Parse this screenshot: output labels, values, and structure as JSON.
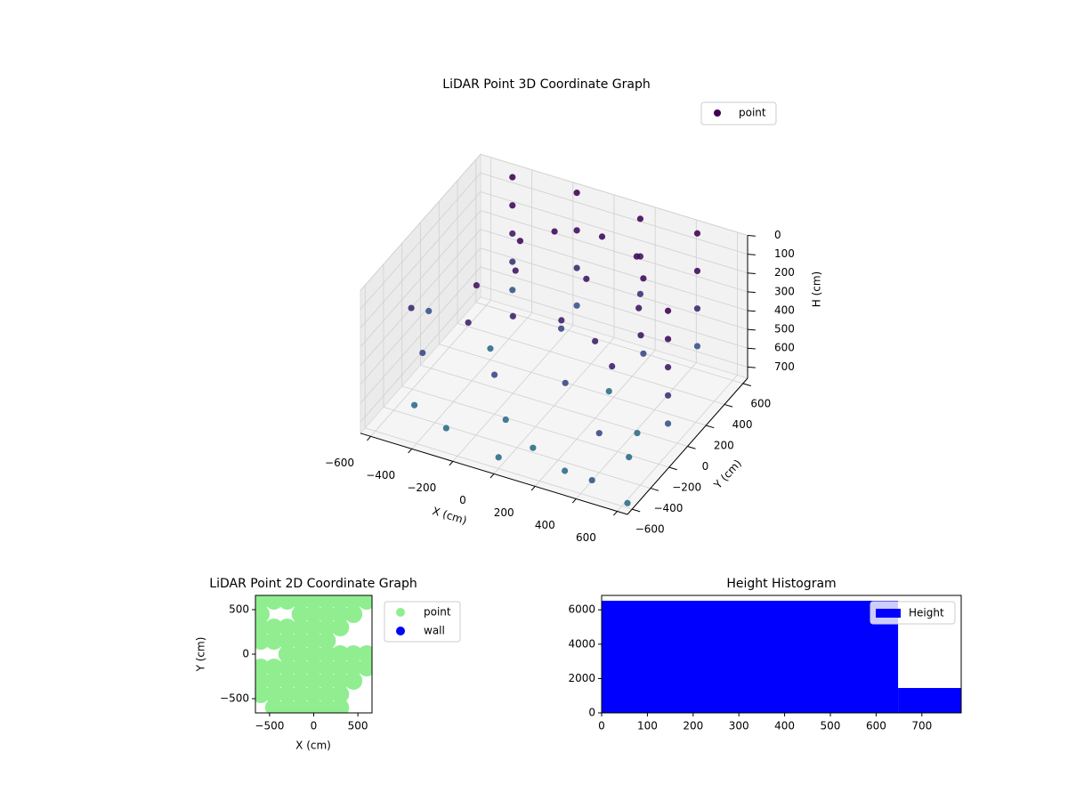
{
  "chart_data": [
    {
      "type": "scatter3d",
      "title": "LiDAR Point 3D Coordinate Graph",
      "xlabel": "X (cm)",
      "ylabel": "Y (cm)",
      "zlabel": "H (cm)",
      "xlim": [
        -650,
        650
      ],
      "ylim": [
        -650,
        650
      ],
      "zlim": [
        0,
        760
      ],
      "z_inverted": true,
      "cmap": "viridis",
      "xticks": [
        {
          "value": -600,
          "label": "−600"
        },
        {
          "value": -400,
          "label": "−400"
        },
        {
          "value": -200,
          "label": "−200"
        },
        0,
        200,
        400,
        600
      ],
      "yticks": [
        {
          "value": -600,
          "label": "−600"
        },
        {
          "value": -400,
          "label": "−400"
        },
        {
          "value": -200,
          "label": "−200"
        },
        0,
        200,
        400,
        600
      ],
      "zticks": [
        0,
        100,
        200,
        300,
        400,
        500,
        600,
        700
      ],
      "series_name": "point",
      "legend_color": "#440154",
      "legend": "upper right",
      "x": [
        -450,
        -450,
        -450,
        -450,
        -450,
        -150,
        -150,
        -150,
        -150,
        150,
        150,
        150,
        450,
        450,
        450,
        450,
        600,
        600,
        600,
        600,
        600,
        -300,
        -200,
        0,
        200,
        300,
        -400,
        -300,
        0,
        300,
        400,
        -350,
        -200,
        0,
        200,
        350,
        -500,
        -300,
        -100,
        100,
        300,
        500,
        -400,
        200,
        450,
        0,
        -550,
        -200,
        100,
        400,
        300,
        -100,
        -650,
        -700,
        650,
        500
      ],
      "y": [
        550,
        550,
        550,
        550,
        550,
        580,
        580,
        580,
        580,
        600,
        600,
        600,
        550,
        550,
        550,
        550,
        -100,
        -100,
        -100,
        -100,
        -100,
        300,
        450,
        520,
        450,
        300,
        50,
        250,
        350,
        250,
        50,
        -150,
        0,
        80,
        0,
        -150,
        -400,
        -500,
        -300,
        -450,
        -550,
        -300,
        200,
        150,
        -100,
        -600,
        -200,
        -200,
        -100,
        -400,
        300,
        300,
        -100,
        200,
        -650,
        -700
      ],
      "h": [
        0,
        150,
        300,
        450,
        600,
        0,
        200,
        400,
        600,
        50,
        250,
        450,
        0,
        200,
        400,
        600,
        0,
        150,
        300,
        450,
        600,
        150,
        150,
        150,
        150,
        150,
        280,
        280,
        280,
        280,
        280,
        350,
        350,
        350,
        350,
        350,
        700,
        700,
        700,
        700,
        700,
        700,
        700,
        700,
        700,
        700,
        550,
        550,
        550,
        550,
        550,
        550,
        400,
        600,
        700,
        600
      ]
    },
    {
      "type": "scatter",
      "title": "LiDAR Point 2D Coordinate Graph",
      "xlabel": "X (cm)",
      "ylabel": "Y (cm)",
      "xlim": [
        -660,
        660
      ],
      "ylim": [
        -660,
        660
      ],
      "xticks": [
        {
          "value": -500,
          "label": "−500"
        },
        0,
        500
      ],
      "yticks": [
        {
          "value": -500,
          "label": "−500"
        },
        0,
        500
      ],
      "legend": "outside right",
      "series": [
        {
          "name": "point",
          "color": "#90ee90",
          "x": [
            -600,
            -600,
            -600,
            -600,
            -600,
            -600,
            -600,
            -450,
            -450,
            -450,
            -450,
            -450,
            -450,
            -450,
            -300,
            -300,
            -300,
            -300,
            -300,
            -300,
            -300,
            -300,
            -150,
            -150,
            -150,
            -150,
            -150,
            -150,
            -150,
            -150,
            -150,
            0,
            0,
            0,
            0,
            0,
            0,
            0,
            0,
            0,
            150,
            150,
            150,
            150,
            150,
            150,
            150,
            150,
            150,
            300,
            300,
            300,
            300,
            300,
            300,
            300,
            300,
            450,
            450,
            450,
            450,
            450,
            600,
            600,
            600
          ],
          "y": [
            -450,
            -300,
            -150,
            150,
            300,
            450,
            600,
            -600,
            -450,
            -300,
            -150,
            150,
            300,
            600,
            -600,
            -450,
            -300,
            -150,
            0,
            150,
            300,
            600,
            -600,
            -450,
            -300,
            -150,
            0,
            150,
            300,
            450,
            600,
            -600,
            -450,
            -300,
            -150,
            0,
            150,
            300,
            450,
            600,
            -600,
            -450,
            -300,
            -150,
            0,
            150,
            300,
            450,
            600,
            -600,
            -450,
            -300,
            -150,
            0,
            300,
            450,
            600,
            -300,
            -150,
            0,
            450,
            600,
            -150,
            0,
            600
          ]
        },
        {
          "name": "wall",
          "color": "#0000ff",
          "x": [],
          "y": []
        }
      ]
    },
    {
      "type": "histogram",
      "title": "Height Histogram",
      "series_name": "Height",
      "color": "#0000ff",
      "legend": "upper right",
      "bins": [
        0,
        648,
        786
      ],
      "counts": [
        6530,
        1450
      ],
      "xlim": [
        0,
        786
      ],
      "ylim": [
        0,
        6840
      ],
      "xticks": [
        0,
        100,
        200,
        300,
        400,
        500,
        600,
        700
      ],
      "yticks": [
        0,
        2000,
        4000,
        6000
      ]
    }
  ]
}
